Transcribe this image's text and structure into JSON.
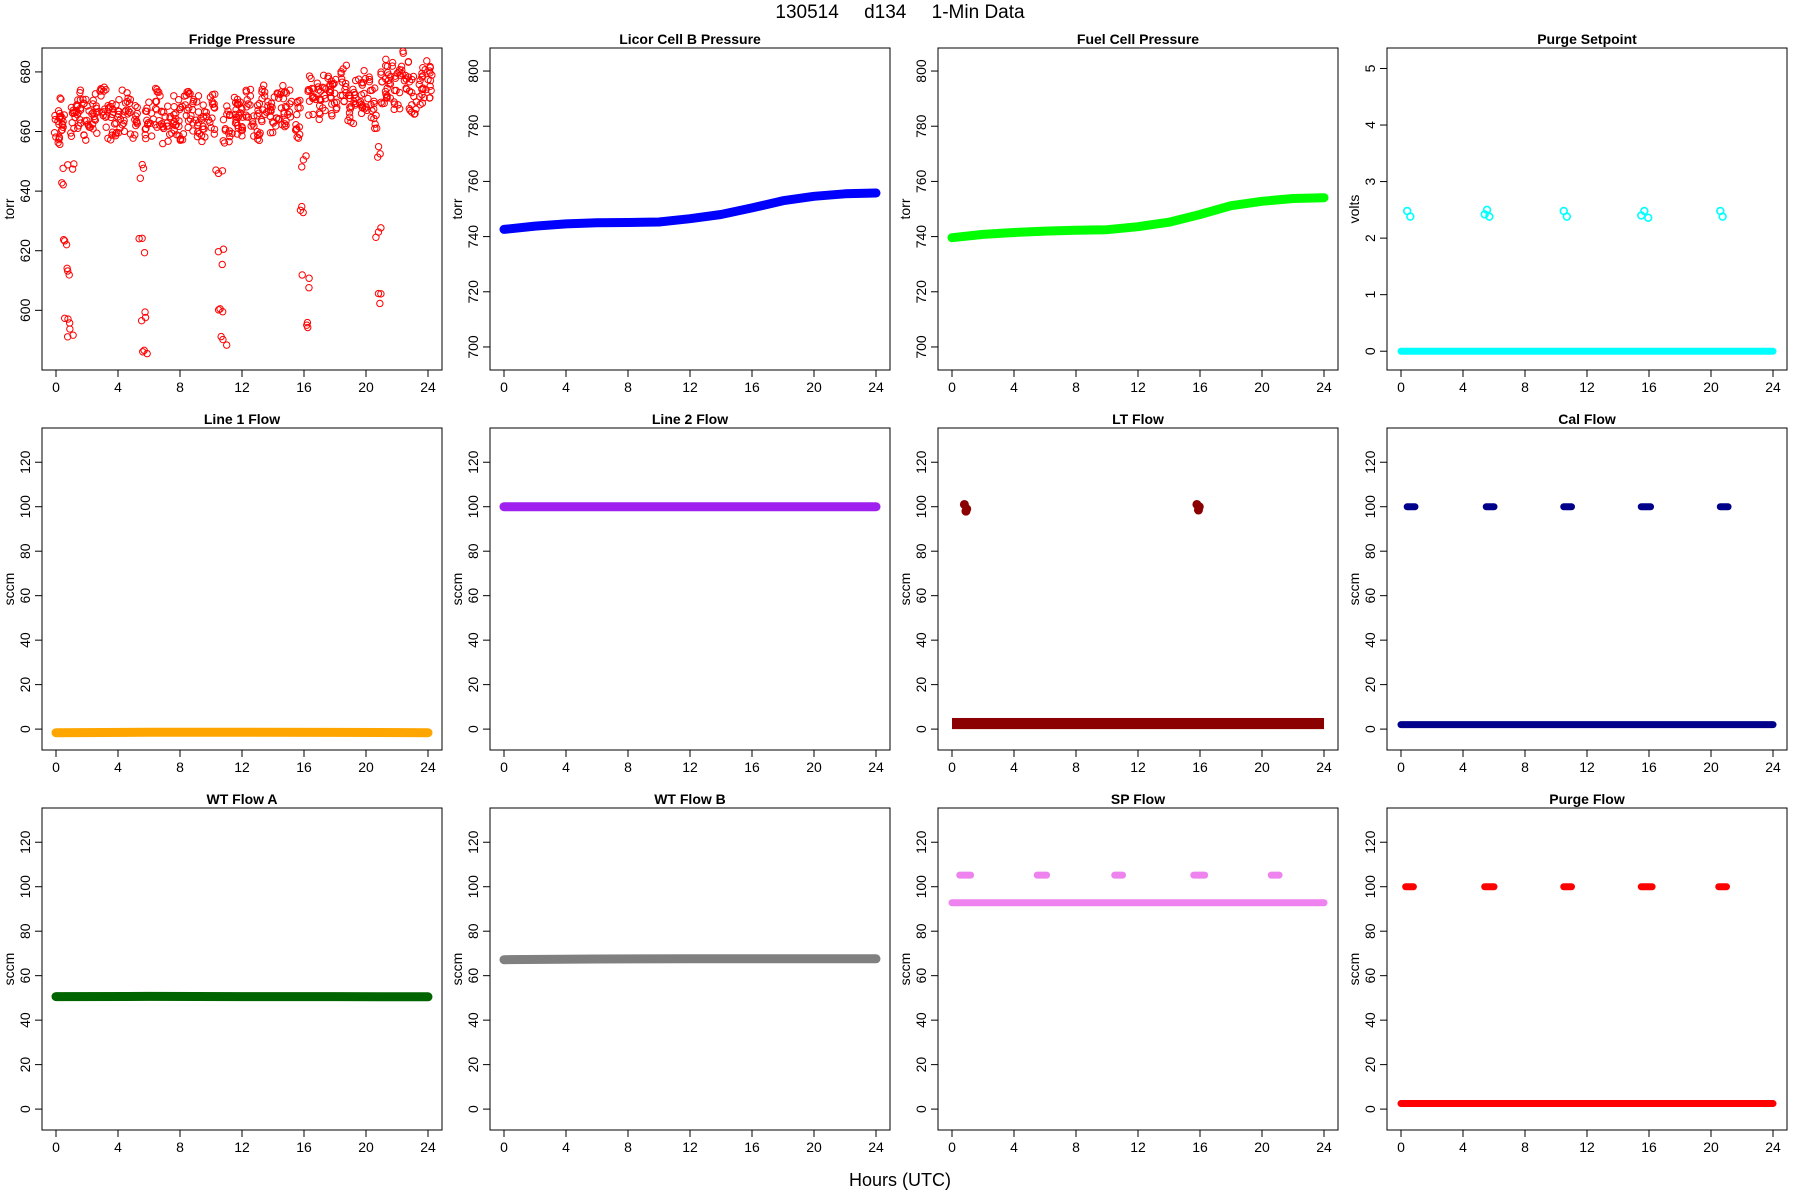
{
  "figure": {
    "title_parts": [
      "130514",
      "d134",
      "1-Min Data"
    ],
    "x_label": "Hours (UTC)"
  },
  "chart_data": [
    {
      "type": "scatter",
      "title": "Fridge Pressure",
      "ylabel": "torr",
      "xlim": [
        0,
        24
      ],
      "ylim": [
        584,
        684
      ],
      "xticks": [
        0,
        4,
        8,
        12,
        16,
        20,
        24
      ],
      "yticks": [
        600,
        620,
        640,
        660,
        680
      ],
      "color": "#ff0000",
      "marker": "open",
      "series": [
        {
          "name": "Fridge Pressure",
          "points": [
            [
              0.1,
              660
            ],
            [
              0.3,
              666
            ],
            [
              0.5,
              645
            ],
            [
              0.6,
              625
            ],
            [
              0.7,
              612
            ],
            [
              0.8,
              597
            ],
            [
              0.9,
              591
            ],
            [
              1.0,
              648
            ],
            [
              1.2,
              662
            ],
            [
              1.5,
              668
            ],
            [
              2.0,
              664
            ],
            [
              2.5,
              666
            ],
            [
              3.0,
              668
            ],
            [
              3.5,
              663
            ],
            [
              4.0,
              665
            ],
            [
              4.5,
              667
            ],
            [
              5.0,
              664
            ],
            [
              5.5,
              646
            ],
            [
              5.6,
              622
            ],
            [
              5.7,
              599
            ],
            [
              5.8,
              588
            ],
            [
              6.0,
              664
            ],
            [
              6.5,
              668
            ],
            [
              7.0,
              662
            ],
            [
              7.5,
              666
            ],
            [
              8.0,
              664
            ],
            [
              8.5,
              668
            ],
            [
              9.0,
              665
            ],
            [
              9.5,
              662
            ],
            [
              10.0,
              666
            ],
            [
              10.5,
              646
            ],
            [
              10.6,
              618
            ],
            [
              10.7,
              600
            ],
            [
              10.8,
              591
            ],
            [
              11.0,
              662
            ],
            [
              11.5,
              666
            ],
            [
              12.0,
              665
            ],
            [
              12.5,
              668
            ],
            [
              13.0,
              664
            ],
            [
              13.5,
              670
            ],
            [
              14.0,
              666
            ],
            [
              14.5,
              669
            ],
            [
              15.0,
              668
            ],
            [
              15.5,
              664
            ],
            [
              15.9,
              650
            ],
            [
              16.0,
              632
            ],
            [
              16.1,
              610
            ],
            [
              16.2,
              595
            ],
            [
              16.5,
              672
            ],
            [
              17.0,
              670
            ],
            [
              17.5,
              674
            ],
            [
              18.0,
              671
            ],
            [
              18.5,
              676
            ],
            [
              19.0,
              669
            ],
            [
              19.5,
              672
            ],
            [
              20.0,
              674
            ],
            [
              20.5,
              668
            ],
            [
              20.7,
              654
            ],
            [
              20.8,
              625
            ],
            [
              20.9,
              604
            ],
            [
              21.2,
              676
            ],
            [
              21.5,
              678
            ],
            [
              22.0,
              674
            ],
            [
              22.5,
              680
            ],
            [
              23.0,
              672
            ],
            [
              23.5,
              676
            ],
            [
              24.0,
              678
            ]
          ]
        }
      ]
    },
    {
      "type": "line",
      "title": "Licor Cell B Pressure",
      "ylabel": "torr",
      "xlim": [
        0,
        24
      ],
      "ylim": [
        696,
        804
      ],
      "xticks": [
        0,
        4,
        8,
        12,
        16,
        20,
        24
      ],
      "yticks": [
        700,
        720,
        740,
        760,
        780,
        800
      ],
      "color": "#0000ff",
      "marker": "solid",
      "series": [
        {
          "name": "Licor Cell B Pressure",
          "x": [
            0,
            2,
            4,
            6,
            8,
            10,
            12,
            14,
            16,
            18,
            20,
            22,
            24
          ],
          "y": [
            742.6,
            743.8,
            744.6,
            745.0,
            745.1,
            745.3,
            746.5,
            748.0,
            750.4,
            753.0,
            754.6,
            755.5,
            755.8
          ]
        }
      ]
    },
    {
      "type": "line",
      "title": "Fuel Cell Pressure",
      "ylabel": "torr",
      "xlim": [
        0,
        24
      ],
      "ylim": [
        696,
        804
      ],
      "xticks": [
        0,
        4,
        8,
        12,
        16,
        20,
        24
      ],
      "yticks": [
        700,
        720,
        740,
        760,
        780,
        800
      ],
      "color": "#00ff00",
      "marker": "solid",
      "series": [
        {
          "name": "Fuel Cell Pressure",
          "x": [
            0,
            2,
            4,
            6,
            8,
            10,
            12,
            14,
            16,
            18,
            20,
            22,
            24
          ],
          "y": [
            739.6,
            740.8,
            741.5,
            742.0,
            742.3,
            742.5,
            743.6,
            745.2,
            748.0,
            751.2,
            752.8,
            753.8,
            754.1
          ]
        }
      ]
    },
    {
      "type": "scatter",
      "title": "Purge Setpoint",
      "ylabel": "volts",
      "xlim": [
        0,
        24
      ],
      "ylim": [
        -0.12,
        5.15
      ],
      "xticks": [
        0,
        4,
        8,
        12,
        16,
        20,
        24
      ],
      "yticks": [
        0,
        1,
        2,
        3,
        4,
        5
      ],
      "color": "#00ffff",
      "marker": "open",
      "series": [
        {
          "name": "Purge Setpoint",
          "baseline": 0,
          "points": [
            [
              0.4,
              2.48
            ],
            [
              0.6,
              2.38
            ],
            [
              5.4,
              2.42
            ],
            [
              5.55,
              2.5
            ],
            [
              5.7,
              2.38
            ],
            [
              10.5,
              2.48
            ],
            [
              10.7,
              2.38
            ],
            [
              15.5,
              2.4
            ],
            [
              15.7,
              2.48
            ],
            [
              15.95,
              2.36
            ],
            [
              20.6,
              2.48
            ],
            [
              20.75,
              2.38
            ]
          ]
        }
      ]
    },
    {
      "type": "line",
      "title": "Line 1 Flow",
      "ylabel": "sccm",
      "xlim": [
        0,
        24
      ],
      "ylim": [
        -4,
        130
      ],
      "xticks": [
        0,
        4,
        8,
        12,
        16,
        20,
        24
      ],
      "yticks": [
        0,
        20,
        40,
        60,
        80,
        100,
        120
      ],
      "color": "#ffa500",
      "marker": "solid",
      "series": [
        {
          "name": "Line 1 Flow",
          "x": [
            0,
            6,
            12,
            18,
            24
          ],
          "y": [
            -1.6,
            -1.4,
            -1.4,
            -1.5,
            -1.6
          ]
        }
      ]
    },
    {
      "type": "line",
      "title": "Line 2 Flow",
      "ylabel": "sccm",
      "xlim": [
        0,
        24
      ],
      "ylim": [
        -4,
        130
      ],
      "xticks": [
        0,
        4,
        8,
        12,
        16,
        20,
        24
      ],
      "yticks": [
        0,
        20,
        40,
        60,
        80,
        100,
        120
      ],
      "color": "#a020f0",
      "marker": "solid",
      "series": [
        {
          "name": "Line 2 Flow",
          "x": [
            0,
            6,
            12,
            18,
            24
          ],
          "y": [
            100,
            100,
            100,
            100,
            100
          ]
        }
      ]
    },
    {
      "type": "scatter",
      "title": "LT Flow",
      "ylabel": "sccm",
      "xlim": [
        0,
        24
      ],
      "ylim": [
        -4,
        130
      ],
      "xticks": [
        0,
        4,
        8,
        12,
        16,
        20,
        24
      ],
      "yticks": [
        0,
        20,
        40,
        60,
        80,
        100,
        120
      ],
      "color": "#8b0000",
      "marker": "band",
      "series": [
        {
          "name": "LT Flow",
          "band": [
            0,
            5
          ],
          "points": [
            [
              0.8,
              101
            ],
            [
              0.95,
              99
            ],
            [
              0.9,
              98
            ],
            [
              15.8,
              101
            ],
            [
              15.95,
              100
            ],
            [
              15.9,
              98.5
            ]
          ]
        }
      ]
    },
    {
      "type": "scatter",
      "title": "Cal Flow",
      "ylabel": "sccm",
      "xlim": [
        0,
        24
      ],
      "ylim": [
        -4,
        130
      ],
      "xticks": [
        0,
        4,
        8,
        12,
        16,
        20,
        24
      ],
      "yticks": [
        0,
        20,
        40,
        60,
        80,
        100,
        120
      ],
      "color": "#00008b",
      "marker": "solid",
      "series": [
        {
          "name": "Cal Flow",
          "baseline": 2,
          "segments": [
            [
              0.4,
              0.9
            ],
            [
              5.5,
              6.0
            ],
            [
              10.5,
              11.0
            ],
            [
              15.5,
              16.1
            ],
            [
              20.6,
              21.1
            ]
          ],
          "segment_value": 100
        }
      ]
    },
    {
      "type": "line",
      "title": "WT Flow A",
      "ylabel": "sccm",
      "xlim": [
        0,
        24
      ],
      "ylim": [
        -4,
        130
      ],
      "xticks": [
        0,
        4,
        8,
        12,
        16,
        20,
        24
      ],
      "yticks": [
        0,
        20,
        40,
        60,
        80,
        100,
        120
      ],
      "color": "#006400",
      "marker": "solid",
      "series": [
        {
          "name": "WT Flow A",
          "x": [
            0,
            6,
            12,
            18,
            24
          ],
          "y": [
            50.6,
            50.7,
            50.6,
            50.6,
            50.5
          ]
        }
      ]
    },
    {
      "type": "line",
      "title": "WT Flow B",
      "ylabel": "sccm",
      "xlim": [
        0,
        24
      ],
      "ylim": [
        -4,
        130
      ],
      "xticks": [
        0,
        4,
        8,
        12,
        16,
        20,
        24
      ],
      "yticks": [
        0,
        20,
        40,
        60,
        80,
        100,
        120
      ],
      "color": "#808080",
      "marker": "solid",
      "series": [
        {
          "name": "WT Flow B",
          "x": [
            0,
            6,
            12,
            18,
            24
          ],
          "y": [
            67.2,
            67.5,
            67.6,
            67.6,
            67.6
          ]
        }
      ]
    },
    {
      "type": "scatter",
      "title": "SP Flow",
      "ylabel": "sccm",
      "xlim": [
        0,
        24
      ],
      "ylim": [
        -4,
        130
      ],
      "xticks": [
        0,
        4,
        8,
        12,
        16,
        20,
        24
      ],
      "yticks": [
        0,
        20,
        40,
        60,
        80,
        100,
        120
      ],
      "color": "#ee82ee",
      "marker": "solid",
      "series": [
        {
          "name": "SP Flow",
          "baseline": 92.8,
          "segments": [
            [
              0.5,
              1.2
            ],
            [
              5.5,
              6.1
            ],
            [
              10.5,
              11.0
            ],
            [
              15.6,
              16.3
            ],
            [
              20.6,
              21.1
            ]
          ],
          "segment_value": 105.2
        }
      ]
    },
    {
      "type": "scatter",
      "title": "Purge Flow",
      "ylabel": "sccm",
      "xlim": [
        0,
        24
      ],
      "ylim": [
        -4,
        130
      ],
      "xticks": [
        0,
        4,
        8,
        12,
        16,
        20,
        24
      ],
      "yticks": [
        0,
        20,
        40,
        60,
        80,
        100,
        120
      ],
      "color": "#ff0000",
      "marker": "solid",
      "series": [
        {
          "name": "Purge Flow",
          "baseline": 2.5,
          "segments": [
            [
              0.3,
              0.8
            ],
            [
              5.4,
              6.0
            ],
            [
              10.5,
              11.0
            ],
            [
              15.5,
              16.2
            ],
            [
              20.5,
              21.0
            ]
          ],
          "segment_value": 100
        }
      ]
    }
  ]
}
